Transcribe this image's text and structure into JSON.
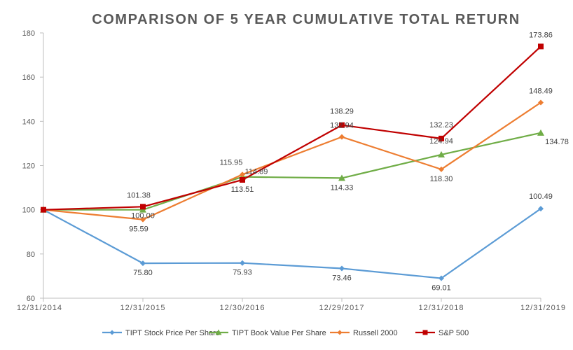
{
  "chart_data": {
    "type": "line",
    "title": "COMPARISON OF 5 YEAR CUMULATIVE TOTAL RETURN",
    "categories": [
      "12/31/2014",
      "12/31/2015",
      "12/30/2016",
      "12/29/2017",
      "12/31/2018",
      "12/31/2019"
    ],
    "ylim": [
      60,
      180
    ],
    "yticks": [
      60,
      80,
      100,
      120,
      140,
      160,
      180
    ],
    "grid": false,
    "legend_position": "bottom",
    "series": [
      {
        "name": "TIPT Stock Price Per Share",
        "color": "#5B9BD5",
        "marker": "diamond",
        "values": [
          100,
          75.8,
          75.93,
          73.46,
          69.01,
          100.49
        ],
        "labels": [
          "",
          "75.80",
          "75.93",
          "73.46",
          "69.01",
          "100.49"
        ]
      },
      {
        "name": "TIPT Book Value Per Share",
        "color": "#70AD47",
        "marker": "triangle",
        "values": [
          100,
          100.0,
          114.89,
          114.33,
          124.94,
          134.78
        ],
        "labels": [
          "",
          "100.00",
          "114.89",
          "114.33",
          "124.94",
          "134.78"
        ]
      },
      {
        "name": "Russell 2000",
        "color": "#ED7D31",
        "marker": "diamond",
        "values": [
          100,
          95.59,
          115.95,
          132.94,
          118.3,
          148.49
        ],
        "labels": [
          "",
          "95.59",
          "115.95",
          "132.94",
          "118.30",
          "148.49"
        ]
      },
      {
        "name": "S&P 500",
        "color": "#C00000",
        "marker": "square",
        "values": [
          100,
          101.38,
          113.51,
          138.29,
          132.23,
          173.86
        ],
        "labels": [
          "",
          "101.38",
          "113.51",
          "138.29",
          "132.23",
          "173.86"
        ]
      }
    ]
  }
}
